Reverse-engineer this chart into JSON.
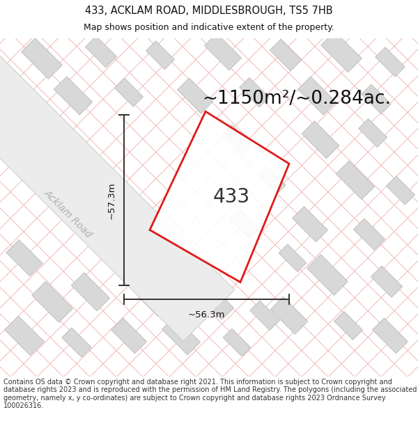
{
  "title": "433, ACKLAM ROAD, MIDDLESBROUGH, TS5 7HB",
  "subtitle": "Map shows position and indicative extent of the property.",
  "area_text": "~1150m²/~0.284ac.",
  "property_number": "433",
  "dim_height": "~57.3m",
  "dim_width": "~56.3m",
  "road_label": "Acklam Road",
  "footer": "Contains OS data © Crown copyright and database right 2021. This information is subject to Crown copyright and database rights 2023 and is reproduced with the permission of HM Land Registry. The polygons (including the associated geometry, namely x, y co-ordinates) are subject to Crown copyright and database rights 2023 Ordnance Survey 100026316.",
  "bg_color": "#ffffff",
  "map_bg": "#f7f7f7",
  "grid_line_color": "#f2b8b8",
  "building_color": "#d8d8d8",
  "building_edge": "#c0c0c0",
  "road_color": "#ececec",
  "road_edge": "#d0d0d0",
  "property_outline_color": "#dd0000",
  "property_fill": "#ffffff",
  "dim_line_color": "#222222",
  "title_fontsize": 10.5,
  "subtitle_fontsize": 9,
  "area_fontsize": 19,
  "number_fontsize": 20,
  "dim_fontsize": 9.5,
  "road_label_fontsize": 10,
  "footer_fontsize": 7.0
}
